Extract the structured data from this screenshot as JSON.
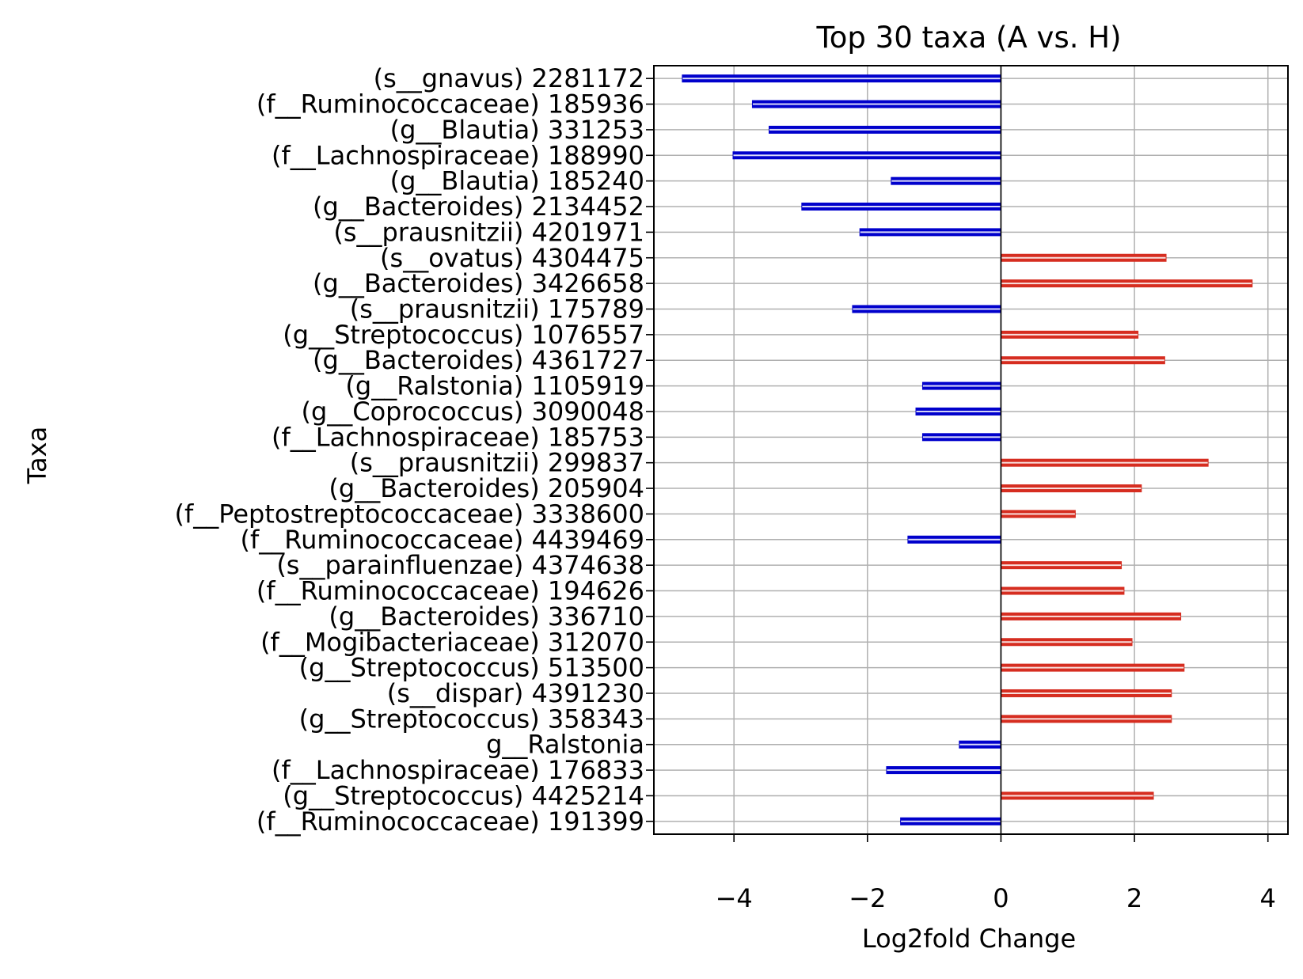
{
  "chart_data": {
    "type": "bar",
    "orientation": "horizontal",
    "title": "Top 30 taxa (A vs. H)",
    "xlabel": "Log2fold Change",
    "ylabel": "Taxa",
    "xlim": [
      -5.2,
      4.3
    ],
    "xticks": [
      -4,
      -2,
      0,
      2,
      4
    ],
    "xtick_labels": [
      "−4",
      "−2",
      "0",
      "2",
      "4"
    ],
    "grid": true,
    "colors": {
      "negative": "#0000cc",
      "positive": "#d62d20",
      "grid": "#b0b0b0"
    },
    "rows": [
      {
        "taxon": "(s__gnavus)",
        "id": "2281172",
        "value": -4.78
      },
      {
        "taxon": "(f__Ruminococcaceae)",
        "id": "185936",
        "value": -3.73
      },
      {
        "taxon": "(g__Blautia)",
        "id": "331253",
        "value": -3.48
      },
      {
        "taxon": "(f__Lachnospiraceae)",
        "id": "188990",
        "value": -4.02
      },
      {
        "taxon": "(g__Blautia)",
        "id": "185240",
        "value": -1.65
      },
      {
        "taxon": "(g__Bacteroides)",
        "id": "2134452",
        "value": -2.99
      },
      {
        "taxon": "(s__prausnitzii)",
        "id": "4201971",
        "value": -2.12
      },
      {
        "taxon": "(s__ovatus)",
        "id": "4304475",
        "value": 2.48
      },
      {
        "taxon": "(g__Bacteroides)",
        "id": "3426658",
        "value": 3.77
      },
      {
        "taxon": "(s__prausnitzii)",
        "id": "175789",
        "value": -2.23
      },
      {
        "taxon": "(g__Streptococcus)",
        "id": "1076557",
        "value": 2.06
      },
      {
        "taxon": "(g__Bacteroides)",
        "id": "4361727",
        "value": 2.46
      },
      {
        "taxon": "(g__Ralstonia)",
        "id": "1105919",
        "value": -1.18
      },
      {
        "taxon": "(g__Coprococcus)",
        "id": "3090048",
        "value": -1.28
      },
      {
        "taxon": "(f__Lachnospiraceae)",
        "id": "185753",
        "value": -1.18
      },
      {
        "taxon": "(s__prausnitzii)",
        "id": "299837",
        "value": 3.11
      },
      {
        "taxon": "(g__Bacteroides)",
        "id": "205904",
        "value": 2.11
      },
      {
        "taxon": "(f__Peptostreptococcaceae)",
        "id": "3338600",
        "value": 1.12
      },
      {
        "taxon": "(f__Ruminococcaceae)",
        "id": "4439469",
        "value": -1.4
      },
      {
        "taxon": "(s__parainfluenzae)",
        "id": "4374638",
        "value": 1.81
      },
      {
        "taxon": "(f__Ruminococcaceae)",
        "id": "194626",
        "value": 1.85
      },
      {
        "taxon": "(g__Bacteroides)",
        "id": "336710",
        "value": 2.7
      },
      {
        "taxon": "(f__Mogibacteriaceae)",
        "id": "312070",
        "value": 1.97
      },
      {
        "taxon": "(g__Streptococcus)",
        "id": "513500",
        "value": 2.75
      },
      {
        "taxon": "(s__dispar)",
        "id": "4391230",
        "value": 2.56
      },
      {
        "taxon": "(g__Streptococcus)",
        "id": "358343",
        "value": 2.56
      },
      {
        "taxon": "g__Ralstonia",
        "id": "",
        "value": -0.63
      },
      {
        "taxon": "(f__Lachnospiraceae)",
        "id": "176833",
        "value": -1.72
      },
      {
        "taxon": "(g__Streptococcus)",
        "id": "4425214",
        "value": 2.29
      },
      {
        "taxon": "(f__Ruminococcaceae)",
        "id": "191399",
        "value": -1.51
      }
    ]
  }
}
